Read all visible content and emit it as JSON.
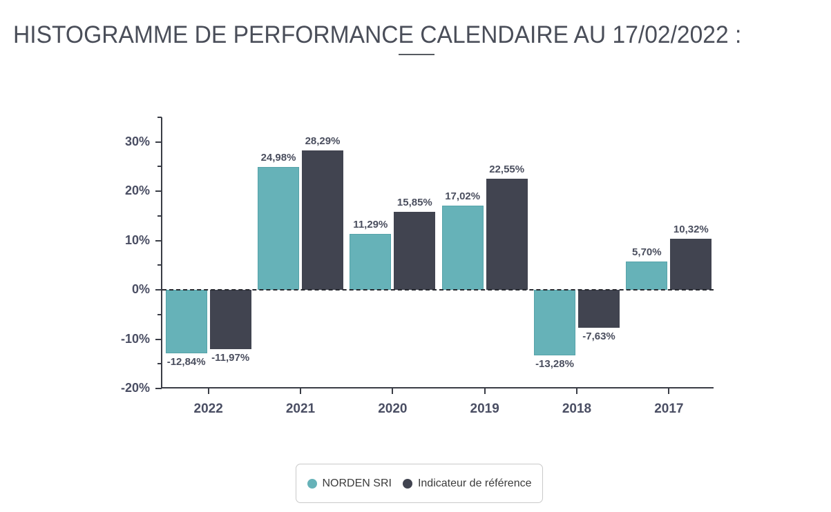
{
  "title": "HISTOGRAMME DE PERFORMANCE CALENDAIRE AU 17/02/2022 :",
  "chart_data": {
    "type": "bar",
    "title": "HISTOGRAMME DE PERFORMANCE CALENDAIRE AU 17/02/2022 :",
    "categories": [
      "2022",
      "2021",
      "2020",
      "2019",
      "2018",
      "2017"
    ],
    "series": [
      {
        "name": "NORDEN SRI",
        "color": "#66b2b8",
        "values": [
          -12.84,
          24.98,
          11.29,
          17.02,
          -13.28,
          5.7
        ],
        "labels": [
          "-12,84%",
          "24,98%",
          "11,29%",
          "17,02%",
          "-13,28%",
          "5,70%"
        ]
      },
      {
        "name": "Indicateur de référence",
        "color": "#414450",
        "values": [
          -11.97,
          28.29,
          15.85,
          22.55,
          -7.63,
          10.32
        ],
        "labels": [
          "-11,97%",
          "28,29%",
          "15,85%",
          "22,55%",
          "-7,63%",
          "10,32%"
        ]
      }
    ],
    "ylim": [
      -20,
      35
    ],
    "ytick_major": [
      30,
      20,
      10,
      0,
      -10,
      -20
    ],
    "ytick_labels": [
      "30%",
      "20%",
      "10%",
      "0%",
      "-10%",
      "-20%"
    ],
    "ytick_minor_step": 5,
    "zero_line": "dashed",
    "grid": false,
    "xlabel": "",
    "ylabel": "",
    "legend_position": "bottom"
  },
  "colors": {
    "axis": "#393c45",
    "axis_label": "#4a4e63",
    "value_label": "#4a4e5e",
    "title_text": "#4a4e59",
    "legend_border": "#c9c9c9"
  }
}
